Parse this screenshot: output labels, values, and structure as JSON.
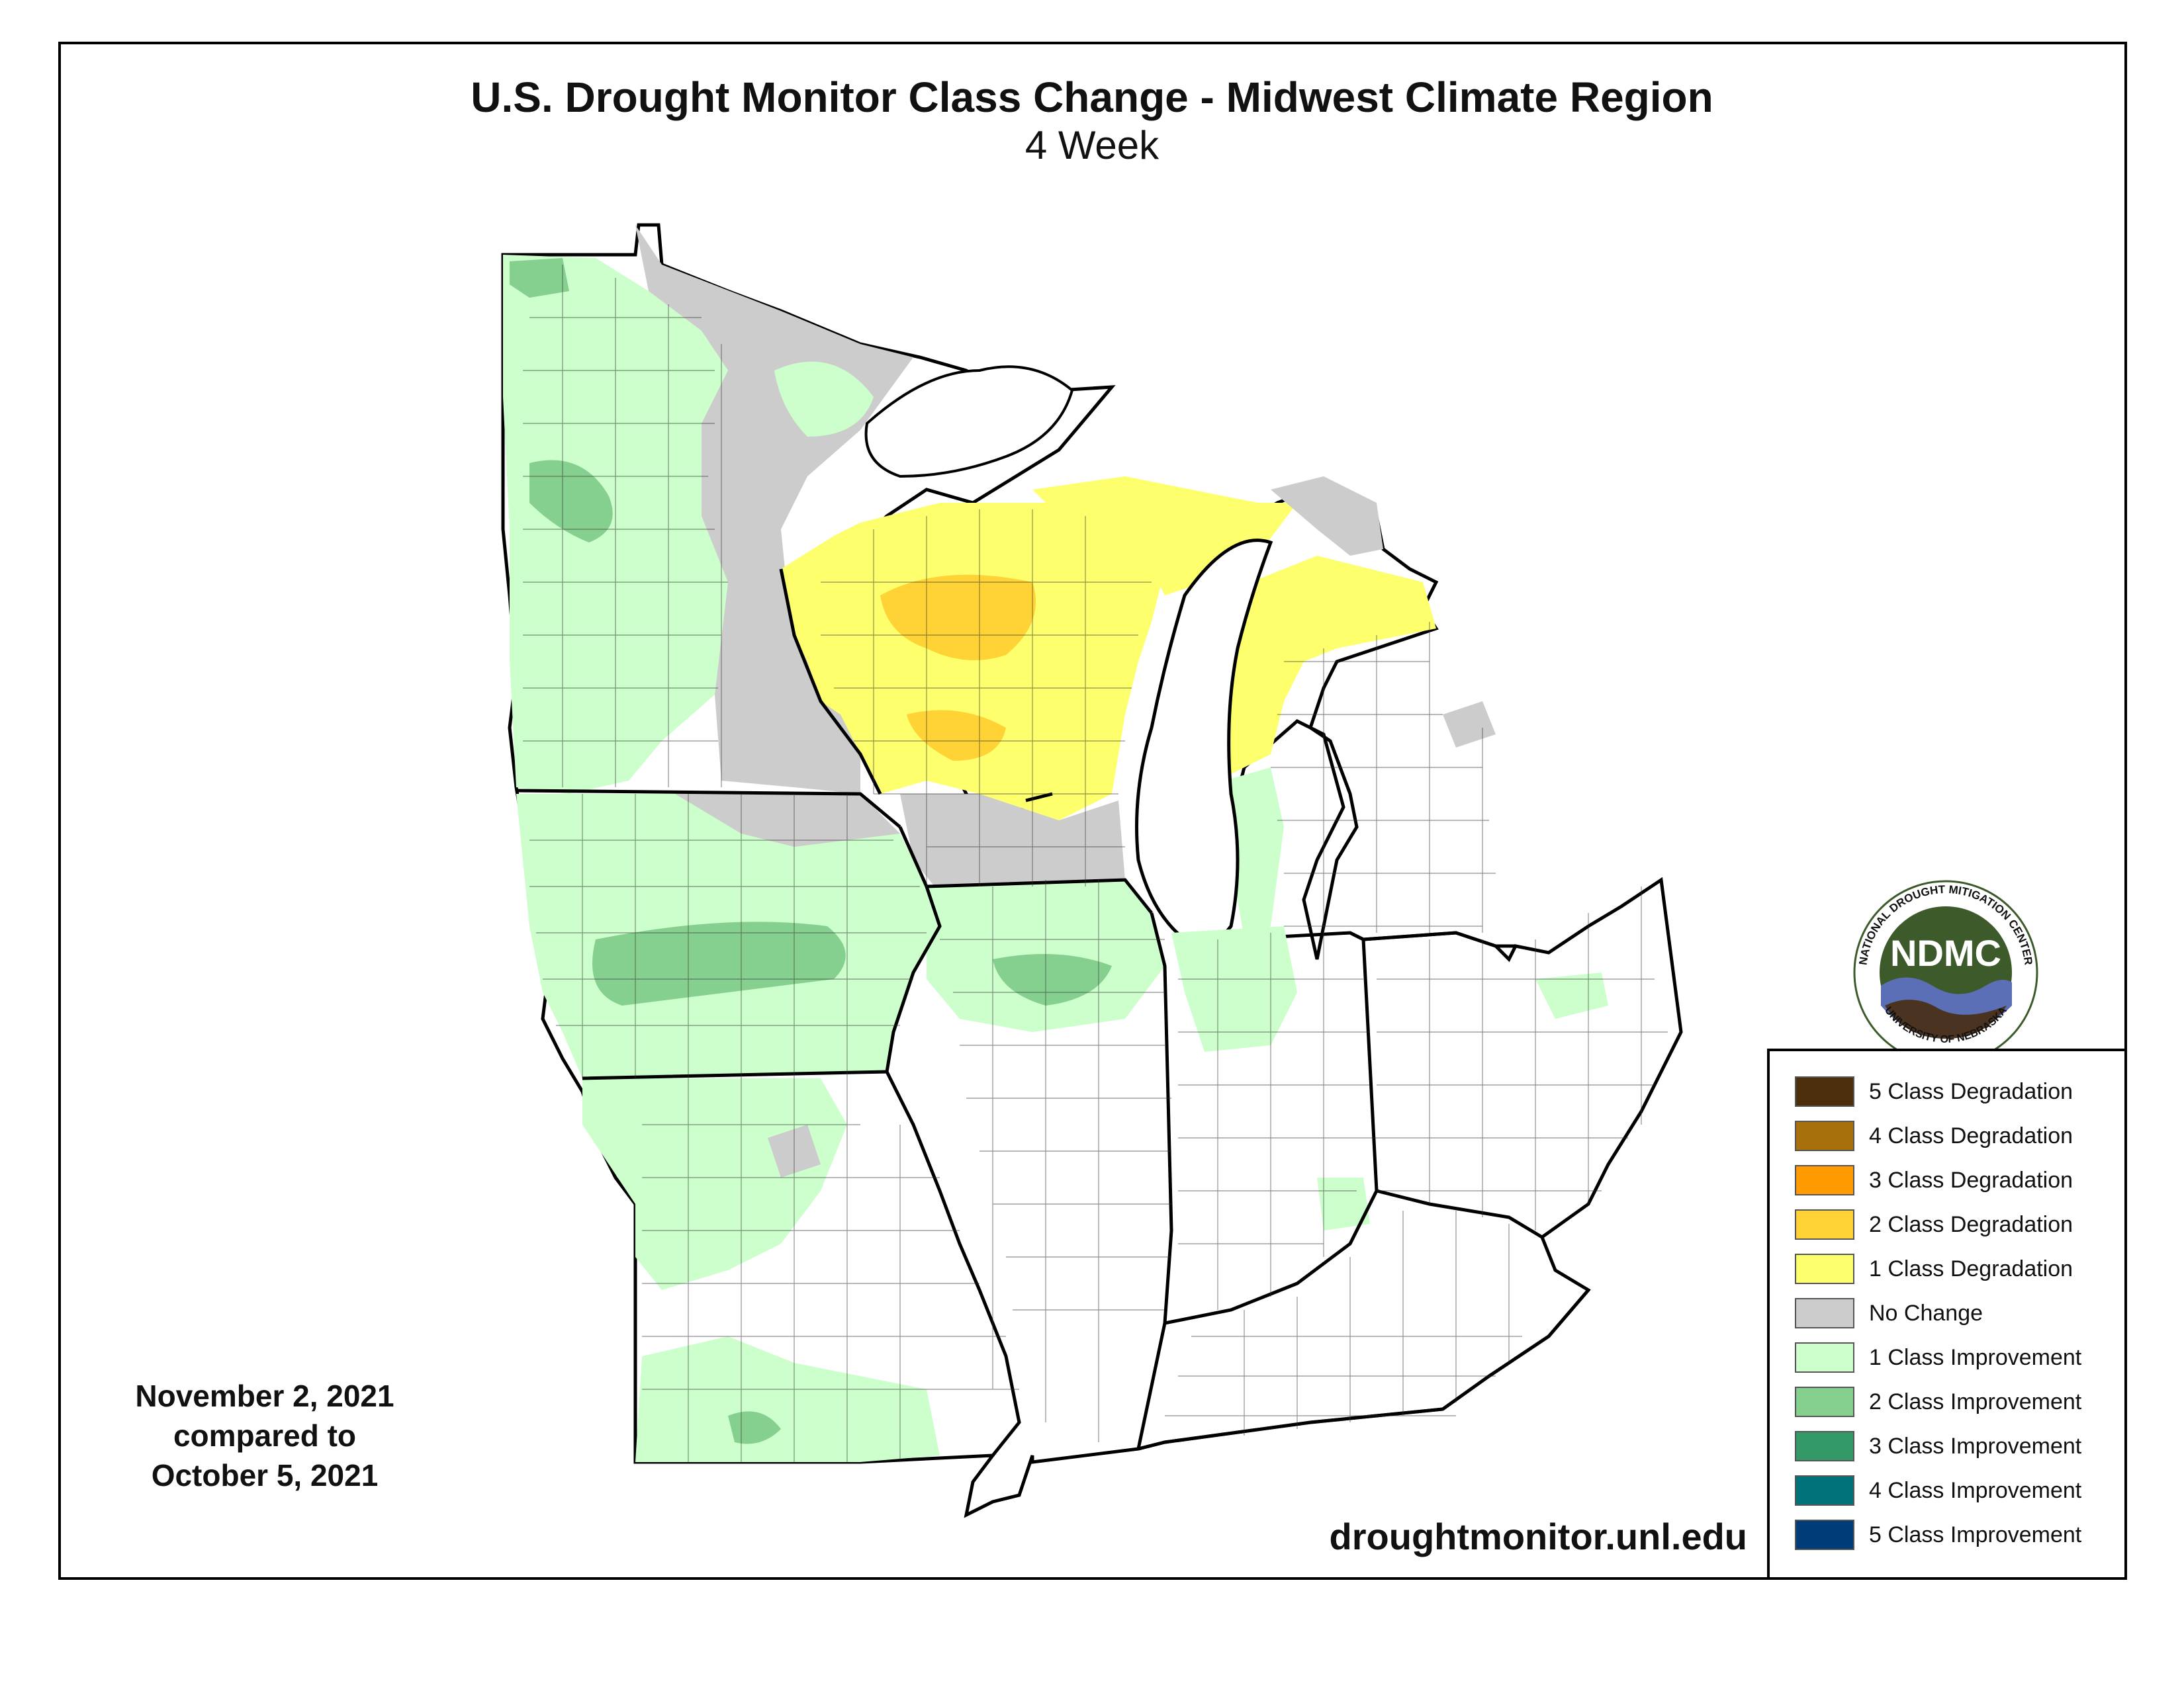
{
  "map": {
    "title": "U.S. Drought Monitor Class Change - Midwest Climate Region",
    "subtitle": "4 Week",
    "date_line1": "November 2, 2021",
    "date_line2": "compared to",
    "date_line3": "October 5, 2021",
    "website": "droughtmonitor.unl.edu"
  },
  "logo": {
    "acronym": "NDMC",
    "ring_top": "NATIONAL DROUGHT MITIGATION CENTER",
    "ring_bottom": "UNIVERSITY OF NEBRASKA",
    "colors": {
      "dark_green": "#3d5a2a",
      "water_blue": "#5a6fb5",
      "soil_brown": "#4a3320"
    }
  },
  "legend": {
    "items": [
      {
        "label": "5 Class Degradation",
        "color": "#4e2f0c"
      },
      {
        "label": "4 Class Degradation",
        "color": "#a8700c"
      },
      {
        "label": "3 Class Degradation",
        "color": "#ff9a00"
      },
      {
        "label": "2 Class Degradation",
        "color": "#ffd235"
      },
      {
        "label": "1 Class Degradation",
        "color": "#fdff6d"
      },
      {
        "label": "No Change",
        "color": "#cccccc"
      },
      {
        "label": "1 Class Improvement",
        "color": "#ccffcc"
      },
      {
        "label": "2 Class Improvement",
        "color": "#86d08f"
      },
      {
        "label": "3 Class Improvement",
        "color": "#339966"
      },
      {
        "label": "4 Class Improvement",
        "color": "#00737a"
      },
      {
        "label": "5 Class Improvement",
        "color": "#003c78"
      }
    ]
  }
}
